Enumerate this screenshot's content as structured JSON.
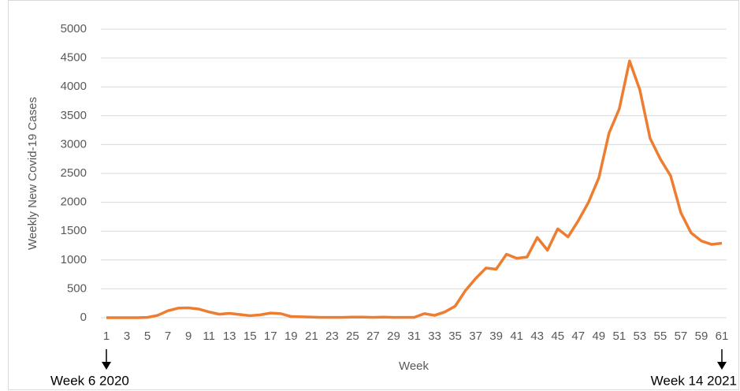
{
  "chart_data": {
    "type": "line",
    "y_label": "Weekly New Covid-19 Cases",
    "x_label": "Week",
    "annotations": [
      "Week 6 2020",
      "Week 14 2021"
    ],
    "x": [
      1,
      2,
      3,
      4,
      5,
      6,
      7,
      8,
      9,
      10,
      11,
      12,
      13,
      14,
      15,
      16,
      17,
      18,
      19,
      20,
      21,
      22,
      23,
      24,
      25,
      26,
      27,
      28,
      29,
      30,
      31,
      32,
      33,
      34,
      35,
      36,
      37,
      38,
      39,
      40,
      41,
      42,
      43,
      44,
      45,
      46,
      47,
      48,
      49,
      50,
      51,
      52,
      53,
      54,
      55,
      56,
      57,
      58,
      59,
      60,
      61
    ],
    "series": [
      {
        "name": "Weekly New Covid-19 Cases",
        "color": "#ed7d31",
        "values": [
          0,
          0,
          0,
          0,
          5,
          40,
          120,
          165,
          170,
          150,
          100,
          60,
          75,
          55,
          35,
          50,
          80,
          70,
          20,
          15,
          10,
          5,
          5,
          5,
          10,
          10,
          5,
          10,
          5,
          5,
          5,
          70,
          40,
          100,
          200,
          470,
          680,
          860,
          840,
          1100,
          1030,
          1050,
          1390,
          1170,
          1540,
          1400,
          1680,
          2000,
          2420,
          3200,
          3620,
          4450,
          3950,
          3110,
          2750,
          2460,
          1820,
          1470,
          1330,
          1270,
          1290
        ]
      }
    ],
    "xlim": [
      1,
      61
    ],
    "xticks": [
      1,
      3,
      5,
      7,
      9,
      11,
      13,
      15,
      17,
      19,
      21,
      23,
      25,
      27,
      29,
      31,
      33,
      35,
      37,
      39,
      41,
      43,
      45,
      47,
      49,
      51,
      53,
      55,
      57,
      59,
      61
    ],
    "ylim": [
      0,
      5000
    ],
    "yticks": [
      0,
      500,
      1000,
      1500,
      2000,
      2500,
      3000,
      3500,
      4000,
      4500,
      5000
    ],
    "grid": true
  }
}
